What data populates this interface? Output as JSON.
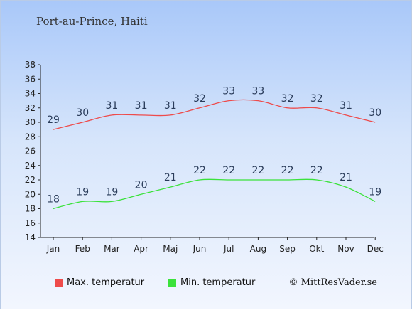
{
  "chart_data": {
    "type": "line",
    "title": "Port-au-Prince, Haiti",
    "categories": [
      "Jan",
      "Feb",
      "Mar",
      "Apr",
      "Maj",
      "Jun",
      "Jul",
      "Aug",
      "Sep",
      "Okt",
      "Nov",
      "Dec"
    ],
    "series": [
      {
        "name": "Max. temperatur",
        "color": "#ee4b4b",
        "values": [
          29,
          30,
          31,
          31,
          31,
          32,
          33,
          33,
          32,
          32,
          31,
          30
        ]
      },
      {
        "name": "Min. temperatur",
        "color": "#3be23b",
        "values": [
          18,
          19,
          19,
          20,
          21,
          22,
          22,
          22,
          22,
          22,
          21,
          19
        ]
      }
    ],
    "yticks": [
      14,
      16,
      18,
      20,
      22,
      24,
      26,
      28,
      30,
      32,
      34,
      36,
      38
    ],
    "ylim": [
      14,
      38
    ],
    "grid": false,
    "legend_position": "bottom"
  },
  "credit": "© MittResVader.se"
}
